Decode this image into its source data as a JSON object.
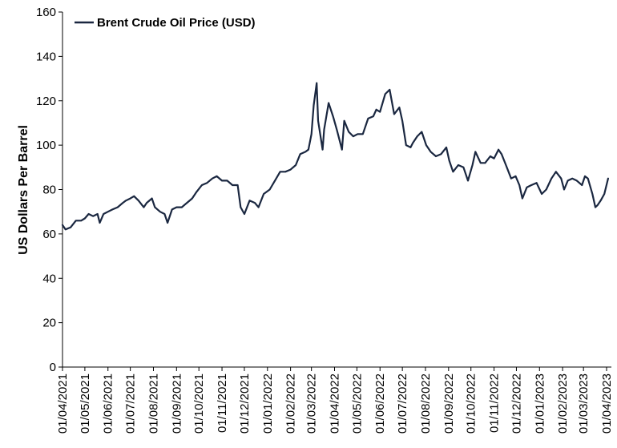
{
  "chart_data": {
    "type": "line",
    "title": "",
    "xlabel": "",
    "ylabel": "US Dollars Per Barrel",
    "ylim": [
      0,
      160
    ],
    "y_ticks": [
      "0",
      "20",
      "40",
      "60",
      "80",
      "100",
      "120",
      "140",
      "160"
    ],
    "x_ticks": [
      "01/04/2021",
      "01/05/2021",
      "01/06/2021",
      "01/07/2021",
      "01/08/2021",
      "01/09/2021",
      "01/10/2021",
      "01/11/2021",
      "01/12/2021",
      "01/01/2022",
      "01/02/2022",
      "01/03/2022",
      "01/04/2022",
      "01/05/2022",
      "01/06/2022",
      "01/07/2022",
      "01/08/2022",
      "01/09/2022",
      "01/10/2022",
      "01/11/2022",
      "01/12/2022",
      "01/01/2023",
      "01/02/2023",
      "01/03/2023",
      "01/04/2023"
    ],
    "grid": false,
    "legend": "top-left",
    "series": [
      {
        "name": "Brent Crude Oil Price (USD)",
        "color": "#1a2740",
        "points": [
          [
            "2021-04-01",
            64
          ],
          [
            "2021-04-05",
            62
          ],
          [
            "2021-04-12",
            63
          ],
          [
            "2021-04-19",
            66
          ],
          [
            "2021-04-26",
            66
          ],
          [
            "2021-05-01",
            67
          ],
          [
            "2021-05-06",
            69
          ],
          [
            "2021-05-12",
            68
          ],
          [
            "2021-05-18",
            69
          ],
          [
            "2021-05-21",
            65
          ],
          [
            "2021-05-26",
            69
          ],
          [
            "2021-06-01",
            70
          ],
          [
            "2021-06-07",
            71
          ],
          [
            "2021-06-14",
            72
          ],
          [
            "2021-06-21",
            74
          ],
          [
            "2021-06-25",
            75
          ],
          [
            "2021-07-01",
            76
          ],
          [
            "2021-07-06",
            77
          ],
          [
            "2021-07-12",
            75
          ],
          [
            "2021-07-19",
            72
          ],
          [
            "2021-07-23",
            74
          ],
          [
            "2021-07-30",
            76
          ],
          [
            "2021-08-03",
            72
          ],
          [
            "2021-08-10",
            70
          ],
          [
            "2021-08-16",
            69
          ],
          [
            "2021-08-20",
            65
          ],
          [
            "2021-08-26",
            71
          ],
          [
            "2021-09-01",
            72
          ],
          [
            "2021-09-08",
            72
          ],
          [
            "2021-09-15",
            74
          ],
          [
            "2021-09-22",
            76
          ],
          [
            "2021-09-28",
            79
          ],
          [
            "2021-10-05",
            82
          ],
          [
            "2021-10-12",
            83
          ],
          [
            "2021-10-19",
            85
          ],
          [
            "2021-10-25",
            86
          ],
          [
            "2021-11-01",
            84
          ],
          [
            "2021-11-08",
            84
          ],
          [
            "2021-11-15",
            82
          ],
          [
            "2021-11-22",
            82
          ],
          [
            "2021-11-26",
            72
          ],
          [
            "2021-12-01",
            69
          ],
          [
            "2021-12-08",
            75
          ],
          [
            "2021-12-15",
            74
          ],
          [
            "2021-12-20",
            72
          ],
          [
            "2021-12-27",
            78
          ],
          [
            "2022-01-04",
            80
          ],
          [
            "2022-01-11",
            84
          ],
          [
            "2022-01-18",
            88
          ],
          [
            "2022-01-25",
            88
          ],
          [
            "2022-02-01",
            89
          ],
          [
            "2022-02-08",
            91
          ],
          [
            "2022-02-14",
            96
          ],
          [
            "2022-02-21",
            97
          ],
          [
            "2022-02-25",
            98
          ],
          [
            "2022-03-01",
            105
          ],
          [
            "2022-03-04",
            118
          ],
          [
            "2022-03-08",
            128
          ],
          [
            "2022-03-10",
            111
          ],
          [
            "2022-03-16",
            98
          ],
          [
            "2022-03-18",
            107
          ],
          [
            "2022-03-24",
            119
          ],
          [
            "2022-03-30",
            113
          ],
          [
            "2022-04-04",
            107
          ],
          [
            "2022-04-11",
            98
          ],
          [
            "2022-04-14",
            111
          ],
          [
            "2022-04-20",
            106
          ],
          [
            "2022-04-26",
            104
          ],
          [
            "2022-05-02",
            105
          ],
          [
            "2022-05-09",
            105
          ],
          [
            "2022-05-16",
            112
          ],
          [
            "2022-05-23",
            113
          ],
          [
            "2022-05-27",
            116
          ],
          [
            "2022-06-01",
            115
          ],
          [
            "2022-06-08",
            123
          ],
          [
            "2022-06-14",
            125
          ],
          [
            "2022-06-20",
            114
          ],
          [
            "2022-06-27",
            117
          ],
          [
            "2022-07-01",
            111
          ],
          [
            "2022-07-06",
            100
          ],
          [
            "2022-07-12",
            99
          ],
          [
            "2022-07-15",
            101
          ],
          [
            "2022-07-21",
            104
          ],
          [
            "2022-07-27",
            106
          ],
          [
            "2022-08-02",
            100
          ],
          [
            "2022-08-08",
            97
          ],
          [
            "2022-08-15",
            95
          ],
          [
            "2022-08-22",
            96
          ],
          [
            "2022-08-29",
            99
          ],
          [
            "2022-09-02",
            93
          ],
          [
            "2022-09-07",
            88
          ],
          [
            "2022-09-14",
            91
          ],
          [
            "2022-09-21",
            90
          ],
          [
            "2022-09-27",
            84
          ],
          [
            "2022-10-03",
            91
          ],
          [
            "2022-10-07",
            97
          ],
          [
            "2022-10-14",
            92
          ],
          [
            "2022-10-20",
            92
          ],
          [
            "2022-10-27",
            95
          ],
          [
            "2022-11-01",
            94
          ],
          [
            "2022-11-07",
            98
          ],
          [
            "2022-11-11",
            96
          ],
          [
            "2022-11-17",
            91
          ],
          [
            "2022-11-24",
            85
          ],
          [
            "2022-11-30",
            86
          ],
          [
            "2022-12-05",
            82
          ],
          [
            "2022-12-09",
            76
          ],
          [
            "2022-12-15",
            81
          ],
          [
            "2022-12-21",
            82
          ],
          [
            "2022-12-28",
            83
          ],
          [
            "2023-01-04",
            78
          ],
          [
            "2023-01-10",
            80
          ],
          [
            "2023-01-17",
            85
          ],
          [
            "2023-01-23",
            88
          ],
          [
            "2023-01-30",
            85
          ],
          [
            "2023-02-03",
            80
          ],
          [
            "2023-02-08",
            84
          ],
          [
            "2023-02-14",
            85
          ],
          [
            "2023-02-20",
            84
          ],
          [
            "2023-02-27",
            82
          ],
          [
            "2023-03-03",
            86
          ],
          [
            "2023-03-07",
            85
          ],
          [
            "2023-03-13",
            78
          ],
          [
            "2023-03-17",
            72
          ],
          [
            "2023-03-20",
            73
          ],
          [
            "2023-03-24",
            75
          ],
          [
            "2023-03-29",
            78
          ],
          [
            "2023-04-03",
            85
          ]
        ]
      }
    ]
  }
}
